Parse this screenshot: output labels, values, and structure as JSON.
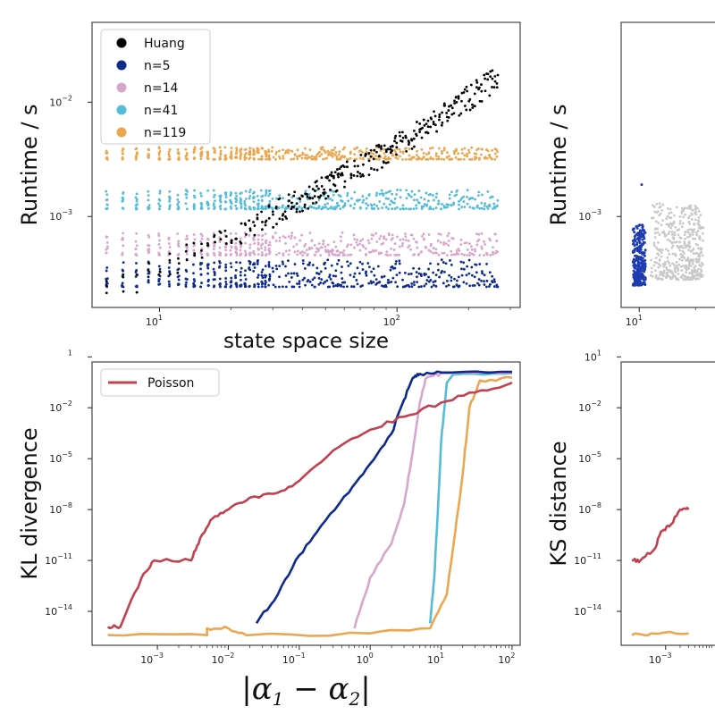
{
  "chart_data": [
    {
      "id": "runtime-left",
      "type": "scatter",
      "ylabel": "Runtime / s",
      "xlabel": "state space size",
      "xscale": "log",
      "yscale": "log",
      "xlim": [
        5.2,
        330
      ],
      "ylim": [
        0.00016,
        0.05
      ],
      "xticks": [
        {
          "v": 10,
          "base": "10",
          "exp": "1"
        },
        {
          "v": 100,
          "base": "10",
          "exp": "2"
        }
      ],
      "yticks": [
        {
          "v": 0.001,
          "base": "10",
          "exp": "−3"
        },
        {
          "v": 0.01,
          "base": "10",
          "exp": "−2"
        }
      ],
      "legend_position": "top-left",
      "series": [
        {
          "name": "n=5",
          "color": "#0d2a8c",
          "x_range": [
            6,
            270
          ],
          "y": 0.00027,
          "spread": 8e-05
        },
        {
          "name": "n=14",
          "color": "#d7a6cc",
          "x_range": [
            6,
            270
          ],
          "y": 0.0005,
          "spread": 0.00012
        },
        {
          "name": "n=41",
          "color": "#55bcd8",
          "x_range": [
            6,
            270
          ],
          "y": 0.00125,
          "spread": 0.00025
        },
        {
          "name": "n=119",
          "color": "#eba650",
          "x_range": [
            6,
            270
          ],
          "y": 0.0033,
          "spread": 0.0004
        },
        {
          "name": "Huang",
          "color": "#000000",
          "x_range": [
            6,
            270
          ],
          "y_at": [
            [
              6,
              0.00022
            ],
            [
              20,
              0.00068
            ],
            [
              50,
              0.0019
            ],
            [
              100,
              0.0042
            ],
            [
              270,
              0.017
            ]
          ],
          "spread": 0.25
        }
      ],
      "legend_order": [
        "Huang",
        "n=5",
        "n=14",
        "n=41",
        "n=119"
      ]
    },
    {
      "id": "runtime-right",
      "type": "scatter",
      "ylabel": "Runtime / s",
      "xscale": "log",
      "yscale": "log",
      "xlim": [
        8,
        30
      ],
      "ylim": [
        0.00016,
        0.05
      ],
      "xticks": [
        {
          "v": 10,
          "base": "10",
          "exp": "1"
        }
      ],
      "yticks": [
        {
          "v": 0.001,
          "base": "10",
          "exp": "−3"
        }
      ],
      "series": [
        {
          "name": "",
          "color": "#1e3cb0",
          "x": 10,
          "y_range": [
            0.00025,
            0.00085
          ]
        },
        {
          "name": "",
          "color": "#c9c9c9",
          "x_range": [
            11.5,
            22
          ],
          "y_range": [
            0.00028,
            0.0013
          ]
        }
      ]
    },
    {
      "id": "kl-left",
      "type": "line",
      "ylabel": "KL divergence",
      "xlabel": "|α1 − α2|",
      "xscale": "log",
      "yscale": "log",
      "xlim": [
        0.00012,
        130
      ],
      "ylim": [
        1e-16,
        5
      ],
      "xticks": [
        {
          "v": 0.001,
          "base": "10",
          "exp": "−3"
        },
        {
          "v": 0.01,
          "base": "10",
          "exp": "−2"
        },
        {
          "v": 0.1,
          "base": "10",
          "exp": "−1"
        },
        {
          "v": 1,
          "base": "10",
          "exp": "0"
        },
        {
          "v": 10,
          "base": "10",
          "exp": "1"
        },
        {
          "v": 100,
          "base": "10",
          "exp": "2"
        }
      ],
      "yticks": [
        {
          "v": 1e-14,
          "base": "10",
          "exp": "−14"
        },
        {
          "v": 1e-11,
          "base": "10",
          "exp": "−11"
        },
        {
          "v": 1e-08,
          "base": "10",
          "exp": "−8"
        },
        {
          "v": 1e-05,
          "base": "10",
          "exp": "−5"
        },
        {
          "v": 0.01,
          "base": "10",
          "exp": "−2"
        },
        {
          "v": 10,
          "base": "",
          "exp": "1"
        }
      ],
      "legend_position": "top-left",
      "series": [
        {
          "name": "Poisson",
          "color": "#c0414f",
          "points": [
            [
              0.0002,
              1.2e-15
            ],
            [
              0.0003,
              1.2e-15
            ],
            [
              0.0006,
              1e-12
            ],
            [
              0.0009,
              1e-11
            ],
            [
              0.003,
              1e-11
            ],
            [
              0.004,
              2e-10
            ],
            [
              0.006,
              3e-09
            ],
            [
              0.01,
              1e-08
            ],
            [
              0.02,
              5e-08
            ],
            [
              0.05,
              1e-07
            ],
            [
              0.1,
              5e-07
            ],
            [
              0.3,
              3e-05
            ],
            [
              1,
              0.0005
            ],
            [
              3,
              0.003
            ],
            [
              10,
              0.02
            ],
            [
              30,
              0.08
            ],
            [
              100,
              0.3
            ]
          ]
        },
        {
          "name": "",
          "color": "#0d2a8c",
          "points": [
            [
              0.025,
              2e-15
            ],
            [
              0.05,
              1e-13
            ],
            [
              0.1,
              2e-11
            ],
            [
              0.2,
              1e-09
            ],
            [
              0.5,
              1e-07
            ],
            [
              1,
              5e-06
            ],
            [
              2,
              0.0003
            ],
            [
              3,
              0.03
            ],
            [
              4,
              0.6
            ],
            [
              5,
              1
            ],
            [
              10,
              1.2
            ],
            [
              100,
              1.3
            ]
          ]
        },
        {
          "name": "",
          "color": "#d7a6cc",
          "points": [
            [
              0.6,
              1e-15
            ],
            [
              1,
              1e-12
            ],
            [
              2,
              1e-10
            ],
            [
              3,
              2e-08
            ],
            [
              4,
              3e-05
            ],
            [
              5,
              0.02
            ],
            [
              6,
              0.5
            ],
            [
              10,
              1.1
            ],
            [
              100,
              1.2
            ]
          ]
        },
        {
          "name": "",
          "color": "#55bcd8",
          "points": [
            [
              7,
              2e-15
            ],
            [
              8,
              1e-12
            ],
            [
              9,
              1e-08
            ],
            [
              10,
              0.0001
            ],
            [
              12,
              0.3
            ],
            [
              15,
              0.9
            ],
            [
              100,
              1.1
            ]
          ]
        },
        {
          "name": "",
          "color": "#eba650",
          "points": [
            [
              0.0002,
              4e-16
            ],
            [
              0.005,
              4e-16
            ],
            [
              0.005,
              1e-15
            ],
            [
              0.01,
              1e-15
            ],
            [
              0.02,
              4e-16
            ],
            [
              1,
              5e-16
            ],
            [
              7,
              1e-15
            ],
            [
              12,
              1e-13
            ],
            [
              15,
              1e-10
            ],
            [
              20,
              1e-06
            ],
            [
              25,
              0.01
            ],
            [
              35,
              0.4
            ],
            [
              100,
              0.6
            ]
          ]
        }
      ]
    },
    {
      "id": "ks-right",
      "type": "line",
      "ylabel": "KS distance",
      "xscale": "log",
      "yscale": "log",
      "xlim": [
        0.00012,
        0.02
      ],
      "ylim": [
        1e-16,
        5
      ],
      "xticks": [
        {
          "v": 0.001,
          "base": "10",
          "exp": "−3"
        }
      ],
      "yticks": [
        {
          "v": 1e-14,
          "base": "10",
          "exp": "−14"
        },
        {
          "v": 1e-11,
          "base": "10",
          "exp": "−11"
        },
        {
          "v": 1e-08,
          "base": "10",
          "exp": "−8"
        },
        {
          "v": 1e-05,
          "base": "10",
          "exp": "−5"
        },
        {
          "v": 0.01,
          "base": "10",
          "exp": "−2"
        },
        {
          "v": 10,
          "base": "10",
          "exp": "1"
        }
      ],
      "series": [
        {
          "name": "",
          "color": "#c0414f",
          "points": [
            [
              0.0002,
              1e-11
            ],
            [
              0.0003,
              1e-11
            ],
            [
              0.0006,
              5e-11
            ],
            [
              0.0008,
              5e-10
            ],
            [
              0.0012,
              1e-09
            ],
            [
              0.002,
              1e-08
            ],
            [
              0.003,
              1e-08
            ]
          ]
        },
        {
          "name": "",
          "color": "#eba650",
          "points": [
            [
              0.0002,
              4e-16
            ],
            [
              0.0005,
              5e-16
            ],
            [
              0.003,
              5e-16
            ]
          ]
        }
      ]
    }
  ]
}
